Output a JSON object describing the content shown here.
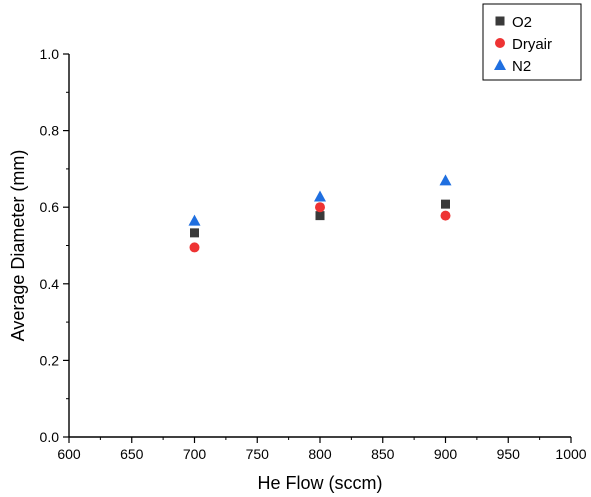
{
  "chart_data": {
    "type": "scatter",
    "title": "",
    "xlabel": "He Flow (sccm)",
    "ylabel": "Average Diameter (mm)",
    "xlim": [
      600,
      1000
    ],
    "ylim": [
      0,
      1.0
    ],
    "xticks": [
      600,
      650,
      700,
      750,
      800,
      850,
      900,
      950,
      1000
    ],
    "yticks": [
      0.0,
      0.2,
      0.4,
      0.6,
      0.8,
      1.0
    ],
    "xtick_labels": [
      "600",
      "650",
      "700",
      "750",
      "800",
      "850",
      "900",
      "950",
      "1000"
    ],
    "ytick_labels": [
      "0.0",
      "0.2",
      "0.4",
      "0.6",
      "0.8",
      "1.0"
    ],
    "grid": false,
    "legend_position": "top-right",
    "series": [
      {
        "name": "O2",
        "marker": "square",
        "color": "#3a3a3a",
        "x": [
          700,
          800,
          900
        ],
        "y": [
          0.533,
          0.578,
          0.608
        ]
      },
      {
        "name": "Dryair",
        "marker": "circle",
        "color": "#ee3333",
        "x": [
          700,
          800,
          900
        ],
        "y": [
          0.495,
          0.6,
          0.578
        ]
      },
      {
        "name": "N2",
        "marker": "triangle",
        "color": "#1f6fe0",
        "x": [
          700,
          800,
          900
        ],
        "y": [
          0.565,
          0.628,
          0.67
        ]
      }
    ]
  }
}
